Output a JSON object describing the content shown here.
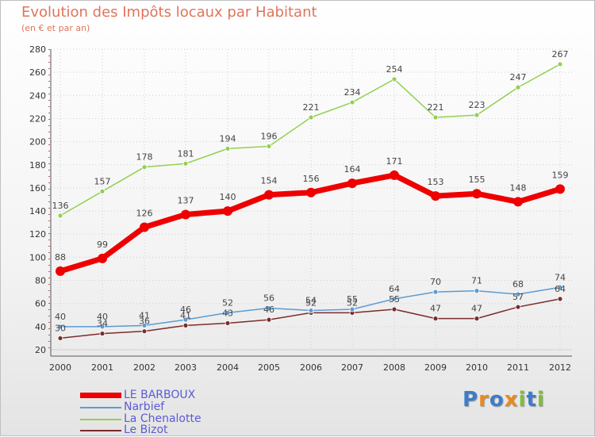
{
  "chart_data": {
    "type": "line",
    "title": "Evolution des Impôts locaux par Habitant",
    "subtitle": "(en € et par an)",
    "x": [
      "2000",
      "2001",
      "2002",
      "2003",
      "2004",
      "2005",
      "2006",
      "2007",
      "2008",
      "2009",
      "2010",
      "2011",
      "2012"
    ],
    "yticks": [
      "20",
      "40",
      "60",
      "80",
      "100",
      "120",
      "140",
      "160",
      "180",
      "200",
      "220",
      "240",
      "260",
      "280"
    ],
    "ylim": [
      20,
      280
    ],
    "grid": true,
    "legend": "bottom-left",
    "series": [
      {
        "name": "LE BARBOUX",
        "color": "#ee0000",
        "width": 7,
        "marker": 6,
        "values": [
          88,
          99,
          126,
          137,
          140,
          154,
          156,
          164,
          171,
          153,
          155,
          148,
          159
        ],
        "labels": [
          "88",
          "99",
          "126",
          "137",
          "140",
          "154",
          "156",
          "164",
          "171",
          "153",
          "155",
          "148",
          "159"
        ]
      },
      {
        "name": "Narbief",
        "color": "#5b9bd5",
        "width": 1.5,
        "marker": 3,
        "values": [
          40,
          40,
          41,
          46,
          52,
          56,
          54,
          55,
          64,
          70,
          71,
          68,
          74
        ],
        "labels": [
          "40",
          "40",
          "41",
          "46",
          "52",
          "56",
          "54",
          "55",
          "64",
          "70",
          "71",
          "68",
          "74"
        ]
      },
      {
        "name": "La Chenalotte",
        "color": "#92d050",
        "width": 1.5,
        "marker": 3,
        "values": [
          136,
          157,
          178,
          181,
          194,
          196,
          221,
          234,
          254,
          221,
          223,
          247,
          267
        ],
        "labels": [
          "136",
          "157",
          "178",
          "181",
          "194",
          "196",
          "221",
          "234",
          "254",
          "221",
          "223",
          "247",
          "267"
        ]
      },
      {
        "name": "Le Bizot",
        "color": "#7b2c2c",
        "width": 1.5,
        "marker": 3,
        "values": [
          30,
          34,
          36,
          41,
          43,
          46,
          52,
          52,
          55,
          47,
          47,
          57,
          64
        ],
        "labels": [
          "30",
          "34",
          "36",
          "41",
          "43",
          "46",
          "52",
          "52",
          "55",
          "47",
          "47",
          "57",
          "64"
        ]
      }
    ]
  },
  "logo": {
    "text": "Proxiti",
    "letters": [
      {
        "ch": "P",
        "color": "#3d7cc9"
      },
      {
        "ch": "r",
        "color": "#e98a1f"
      },
      {
        "ch": "o",
        "color": "#3d7cc9"
      },
      {
        "ch": "x",
        "color": "#e98a1f"
      },
      {
        "ch": "i",
        "color": "#7cbf3c"
      },
      {
        "ch": "t",
        "color": "#3d7cc9"
      },
      {
        "ch": "i",
        "color": "#7cbf3c"
      }
    ]
  }
}
